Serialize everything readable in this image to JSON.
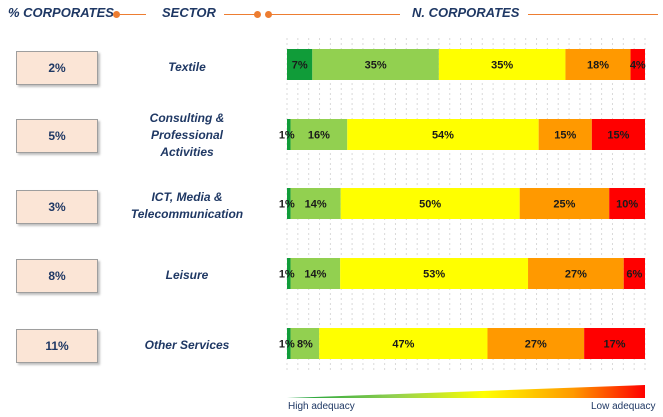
{
  "headers": {
    "corporates_pct": "% CORPORATES",
    "sector": "SECTOR",
    "n_corporates": "N. CORPORATES"
  },
  "colors": {
    "header_line": "#ed7d31",
    "text": "#1f3864",
    "box_fill": "#fbe5d6",
    "segments": [
      "#109c39",
      "#92d050",
      "#ffff00",
      "#ff9900",
      "#ff0000"
    ]
  },
  "legend": {
    "high": "High adequacy",
    "low": "Low adequacy"
  },
  "chart_data": {
    "type": "bar",
    "orientation": "horizontal",
    "stacked": true,
    "percent_scale": true,
    "categories": [
      "Textile",
      "Consulting &\nProfessional\nActivities",
      "ICT, Media &\nTelecommunication",
      "Leisure",
      "Other Services"
    ],
    "corporates_pct": [
      "2%",
      "5%",
      "3%",
      "8%",
      "11%"
    ],
    "series": [
      {
        "color": "#109c39",
        "values": [
          7,
          1,
          1,
          1,
          1
        ]
      },
      {
        "color": "#92d050",
        "values": [
          35,
          16,
          14,
          14,
          8
        ]
      },
      {
        "color": "#ffff00",
        "values": [
          35,
          54,
          50,
          53,
          47
        ]
      },
      {
        "color": "#ff9900",
        "values": [
          18,
          15,
          25,
          27,
          27
        ]
      },
      {
        "color": "#ff0000",
        "values": [
          4,
          15,
          10,
          6,
          17
        ]
      }
    ],
    "labels": [
      [
        "7%",
        "35%",
        "35%",
        "18%",
        "4%"
      ],
      [
        "1%",
        "16%",
        "54%",
        "15%",
        "15%"
      ],
      [
        "1%",
        "14%",
        "50%",
        "25%",
        "10%"
      ],
      [
        "1%",
        "14%",
        "53%",
        "27%",
        "6%"
      ],
      [
        "1%",
        "8%",
        "47%",
        "27%",
        "17%"
      ]
    ]
  }
}
